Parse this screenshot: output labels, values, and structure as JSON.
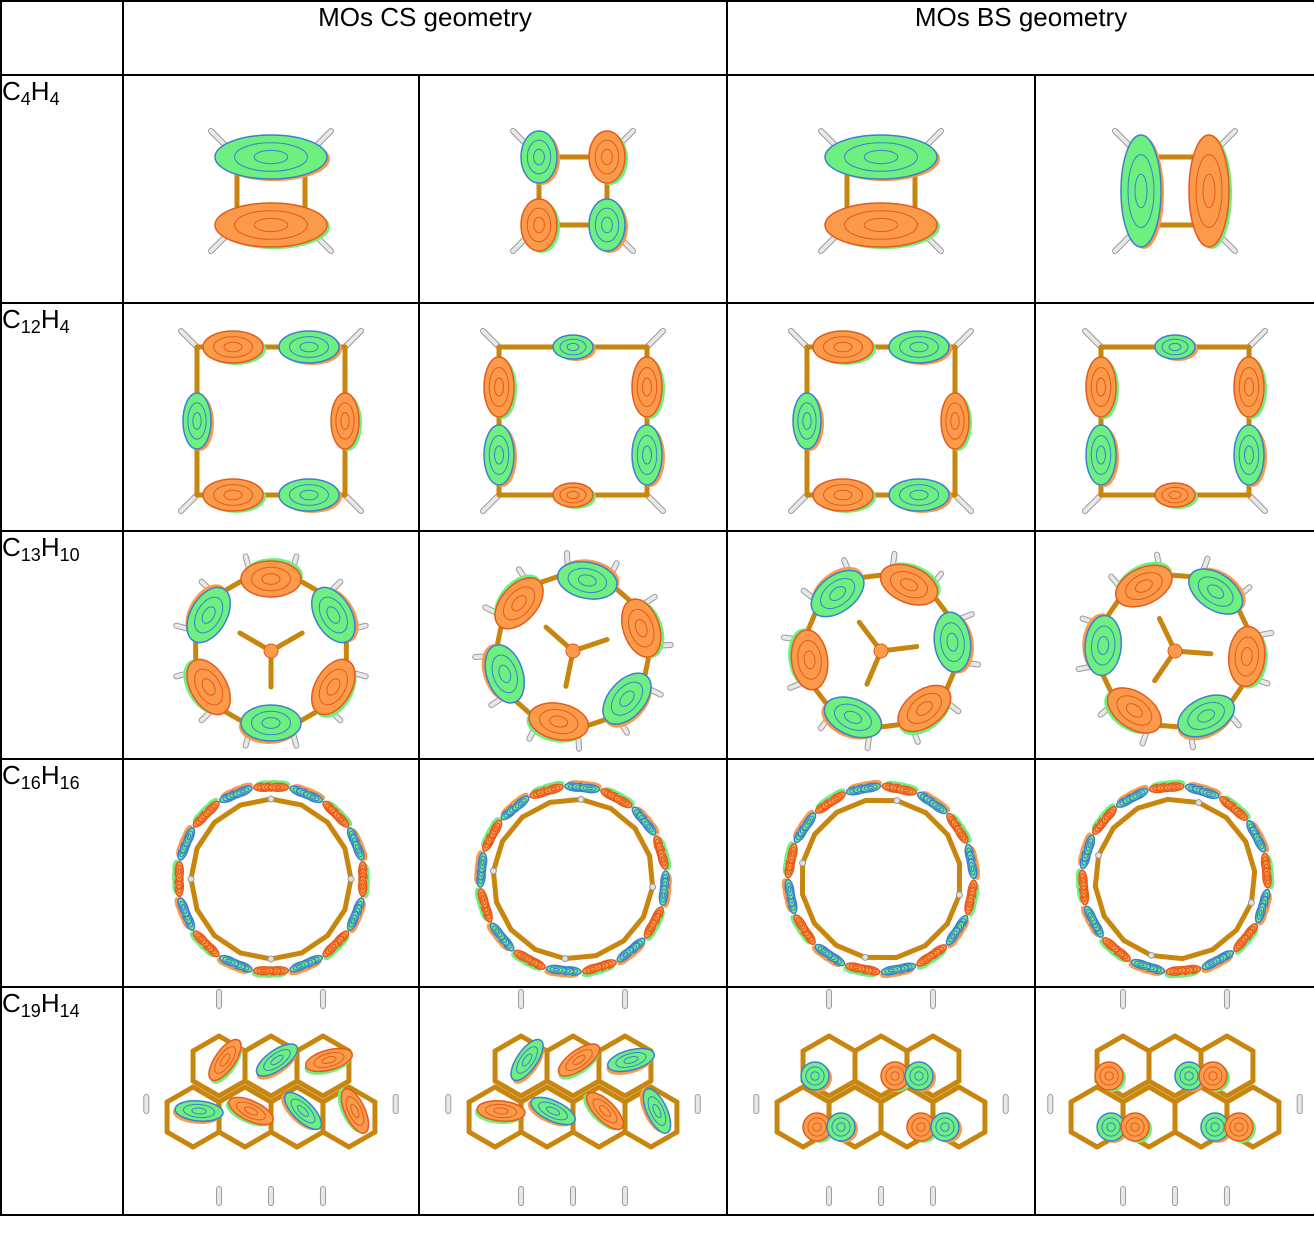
{
  "header": {
    "corner": "",
    "cs_geometry": "MOs CS geometry",
    "bs_geometry": "MOs BS geometry"
  },
  "rows": [
    {
      "formula": {
        "c": "C",
        "c_sub": "4",
        "h": "H",
        "h_sub": "4"
      }
    },
    {
      "formula": {
        "c": "C",
        "c_sub": "12",
        "h": "H",
        "h_sub": "4"
      }
    },
    {
      "formula": {
        "c": "C",
        "c_sub": "13",
        "h": "H",
        "h_sub": "10"
      }
    },
    {
      "formula": {
        "c": "C",
        "c_sub": "16",
        "h": "H",
        "h_sub": "16"
      }
    },
    {
      "formula": {
        "c": "C",
        "c_sub": "19",
        "h": "H",
        "h_sub": "14"
      }
    }
  ],
  "colors": {
    "bond": "#c8860f",
    "lobe_positive": "#fb9a4a",
    "lobe_negative": "#6ef081",
    "lobe_edge_positive": "#e55a1a",
    "lobe_edge_negative": "#3b7fd0",
    "hydrogen": "#e8e8e8"
  }
}
